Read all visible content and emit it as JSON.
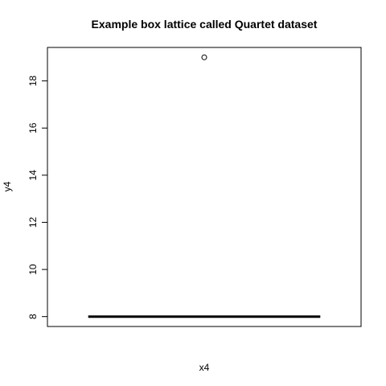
{
  "chart_data": {
    "type": "box",
    "title": "Example box lattice called Quartet dataset",
    "xlabel": "x4",
    "ylabel": "y4",
    "ylim": [
      7.58,
      19.42
    ],
    "yticks": [
      8,
      10,
      12,
      14,
      16,
      18
    ],
    "ytick_labels": [
      "8",
      "10",
      "12",
      "14",
      "16",
      "18"
    ],
    "boxes": [
      {
        "min": 8.0,
        "q1": 8.0,
        "median": 8.0,
        "q3": 8.0,
        "max": 8.0,
        "outliers": [
          19.0
        ]
      }
    ],
    "colors": {
      "line": "#000000",
      "background": "#ffffff"
    }
  }
}
